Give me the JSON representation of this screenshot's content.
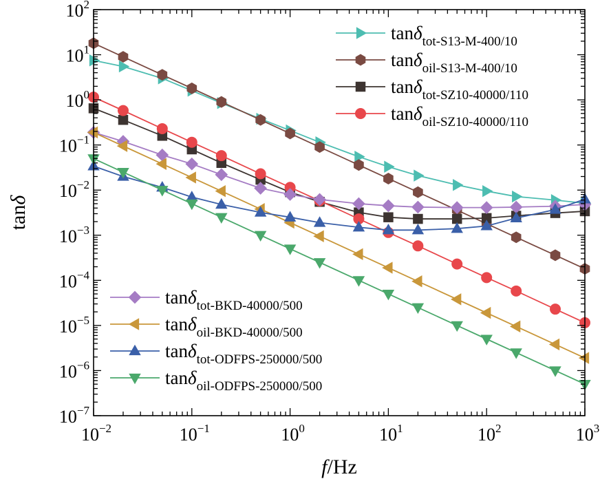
{
  "chart_data": {
    "type": "line",
    "xlabel": {
      "italic": "f",
      "rest": "/Hz"
    },
    "ylabel": {
      "base": "tan",
      "greek": "δ"
    },
    "xscale": "log",
    "yscale": "log",
    "xlim": [
      0.01,
      1000
    ],
    "ylim": [
      1e-07,
      100
    ],
    "x_ticks": [
      {
        "base": "10",
        "exp": "−2",
        "value": 0.01
      },
      {
        "base": "10",
        "exp": "−1",
        "value": 0.1
      },
      {
        "base": "10",
        "exp": "0",
        "value": 1
      },
      {
        "base": "10",
        "exp": "1",
        "value": 10
      },
      {
        "base": "10",
        "exp": "2",
        "value": 100
      },
      {
        "base": "10",
        "exp": "3",
        "value": 1000
      }
    ],
    "y_ticks": [
      {
        "base": "10",
        "exp": "2",
        "value": 100
      },
      {
        "base": "10",
        "exp": "1",
        "value": 10
      },
      {
        "base": "10",
        "exp": "0",
        "value": 1
      },
      {
        "base": "10",
        "exp": "−1",
        "value": 0.1
      },
      {
        "base": "10",
        "exp": "−2",
        "value": 0.01
      },
      {
        "base": "10",
        "exp": "−3",
        "value": 0.001
      },
      {
        "base": "10",
        "exp": "−4",
        "value": 0.0001
      },
      {
        "base": "10",
        "exp": "−5",
        "value": 1e-05
      },
      {
        "base": "10",
        "exp": "−6",
        "value": 1e-06
      },
      {
        "base": "10",
        "exp": "−7",
        "value": 1e-07
      }
    ],
    "grid": false,
    "legend_placement": [
      "top-right",
      "bottom-left"
    ],
    "x": [
      0.01,
      0.02,
      0.05,
      0.1,
      0.2,
      0.5,
      1,
      2,
      5,
      10,
      20,
      50,
      100,
      200,
      500,
      1000
    ],
    "series": [
      {
        "name": "tanδ tot-S13-M-400/10",
        "base": "tan",
        "greek": "δ",
        "sub": "tot-S13-M-400/10",
        "color": "#4dbdb1",
        "marker": "triangle-right",
        "legend_group": 0,
        "values": [
          7.5,
          5.5,
          3.0,
          1.6,
          0.85,
          0.38,
          0.21,
          0.115,
          0.055,
          0.033,
          0.021,
          0.013,
          0.0095,
          0.0072,
          0.006,
          0.0051
        ]
      },
      {
        "name": "tanδ oil-S13-M-400/10",
        "base": "tan",
        "greek": "δ",
        "sub": "oil-S13-M-400/10",
        "color": "#7a4a42",
        "marker": "hexagon",
        "legend_group": 0,
        "values": [
          18,
          9,
          3.6,
          1.8,
          0.9,
          0.36,
          0.18,
          0.09,
          0.036,
          0.018,
          0.009,
          0.0036,
          0.0018,
          0.0009,
          0.00036,
          0.00018
        ]
      },
      {
        "name": "tanδ tot-SZ10-40000/110",
        "base": "tan",
        "greek": "δ",
        "sub": "tot-SZ10-40000/110",
        "color": "#3d3431",
        "marker": "square",
        "legend_group": 0,
        "values": [
          0.65,
          0.36,
          0.16,
          0.08,
          0.04,
          0.017,
          0.009,
          0.0055,
          0.0032,
          0.0025,
          0.0023,
          0.0023,
          0.0024,
          0.0027,
          0.0031,
          0.0034
        ]
      },
      {
        "name": "tanδ oil-SZ10-40000/110",
        "base": "tan",
        "greek": "δ",
        "sub": "oil-SZ10-40000/110",
        "color": "#e8474b",
        "marker": "circle",
        "legend_group": 0,
        "values": [
          1.15,
          0.58,
          0.23,
          0.115,
          0.058,
          0.023,
          0.0115,
          0.0058,
          0.0023,
          0.00115,
          0.00058,
          0.00023,
          0.000115,
          5.8e-05,
          2.3e-05,
          1.15e-05
        ]
      },
      {
        "name": "tanδ tot-BKD-40000/500",
        "base": "tan",
        "greek": "δ",
        "sub": "tot-BKD-40000/500",
        "color": "#a57cc4",
        "marker": "diamond",
        "legend_group": 1,
        "values": [
          0.19,
          0.12,
          0.06,
          0.038,
          0.022,
          0.011,
          0.008,
          0.0062,
          0.005,
          0.0045,
          0.0042,
          0.0041,
          0.0041,
          0.0042,
          0.0044,
          0.0048
        ]
      },
      {
        "name": "tanδ oil-BKD-40000/500",
        "base": "tan",
        "greek": "δ",
        "sub": "oil-BKD-40000/500",
        "color": "#c9973a",
        "marker": "triangle-left",
        "legend_group": 1,
        "values": [
          0.19,
          0.095,
          0.038,
          0.019,
          0.0095,
          0.0038,
          0.0019,
          0.00095,
          0.00038,
          0.00019,
          9.5e-05,
          3.8e-05,
          1.9e-05,
          9.5e-06,
          3.8e-06,
          1.9e-06
        ]
      },
      {
        "name": "tanδ tot-ODFPS-250000/500",
        "base": "tan",
        "greek": "δ",
        "sub": "tot-ODFPS-250000/500",
        "color": "#3a5fa8",
        "marker": "triangle-up",
        "legend_group": 1,
        "values": [
          0.034,
          0.02,
          0.0115,
          0.007,
          0.0048,
          0.0032,
          0.0025,
          0.0019,
          0.0015,
          0.0013,
          0.0013,
          0.0014,
          0.0016,
          0.0024,
          0.0037,
          0.0063
        ]
      },
      {
        "name": "tanδ oil-ODFPS-250000/500",
        "base": "tan",
        "greek": "δ",
        "sub": "oil-ODFPS-250000/500",
        "color": "#4aa86b",
        "marker": "triangle-down",
        "legend_group": 1,
        "values": [
          0.05,
          0.025,
          0.01,
          0.005,
          0.0025,
          0.001,
          0.0005,
          0.00025,
          0.0001,
          5e-05,
          2.5e-05,
          1e-05,
          5e-06,
          2.5e-06,
          1e-06,
          5e-07
        ]
      }
    ]
  }
}
